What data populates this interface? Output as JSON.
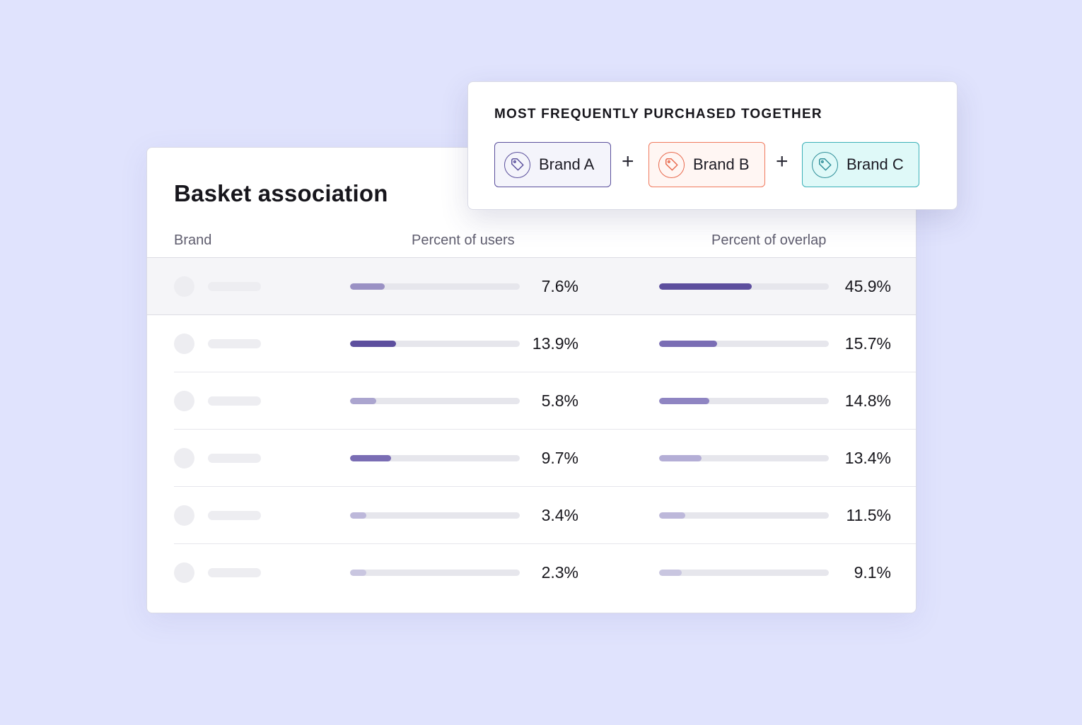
{
  "card": {
    "title": "Basket association",
    "columns": {
      "brand": "Brand",
      "users": "Percent of users",
      "overlap": "Percent of overlap"
    },
    "rows": [
      {
        "users": "7.6%",
        "users_fill": 0.205,
        "users_color": "#9a91c4",
        "overlap": "45.9%",
        "overlap_fill": 0.545,
        "overlap_color": "#5d4f9e",
        "highlight": true
      },
      {
        "users": "13.9%",
        "users_fill": 0.27,
        "users_color": "#5d4f9e",
        "overlap": "15.7%",
        "overlap_fill": 0.34,
        "overlap_color": "#7a6db4"
      },
      {
        "users": "5.8%",
        "users_fill": 0.155,
        "users_color": "#aba5cf",
        "overlap": "14.8%",
        "overlap_fill": 0.295,
        "overlap_color": "#8f85c2"
      },
      {
        "users": "9.7%",
        "users_fill": 0.24,
        "users_color": "#7a6db4",
        "overlap": "13.4%",
        "overlap_fill": 0.25,
        "overlap_color": "#b4aed6"
      },
      {
        "users": "3.4%",
        "users_fill": 0.095,
        "users_color": "#bdb8da",
        "overlap": "11.5%",
        "overlap_fill": 0.155,
        "overlap_color": "#bdb8da"
      },
      {
        "users": "2.3%",
        "users_fill": 0.095,
        "users_color": "#c9c6e0",
        "overlap": "9.1%",
        "overlap_fill": 0.135,
        "overlap_color": "#c9c6e0"
      }
    ]
  },
  "popup": {
    "title": "MOST FREQUENTLY PURCHASED TOGETHER",
    "plus": "+",
    "chips": [
      {
        "label": "Brand A",
        "icon": "tag-icon",
        "border": "#5a4f9c",
        "bg": "#f4f4fb",
        "icon_color": "#5a4f9c"
      },
      {
        "label": "Brand B",
        "icon": "tag-icon",
        "border": "#f07a5e",
        "bg": "#fff6f3",
        "icon_color": "#e86a4e"
      },
      {
        "label": "Brand C",
        "icon": "tag-icon",
        "border": "#3bb0b8",
        "bg": "#dff9f8",
        "icon_color": "#2f8f99"
      }
    ]
  },
  "colors": {
    "background": "#e0e3fd",
    "track": "#e6e6ec",
    "placeholder": "#ededf1"
  }
}
